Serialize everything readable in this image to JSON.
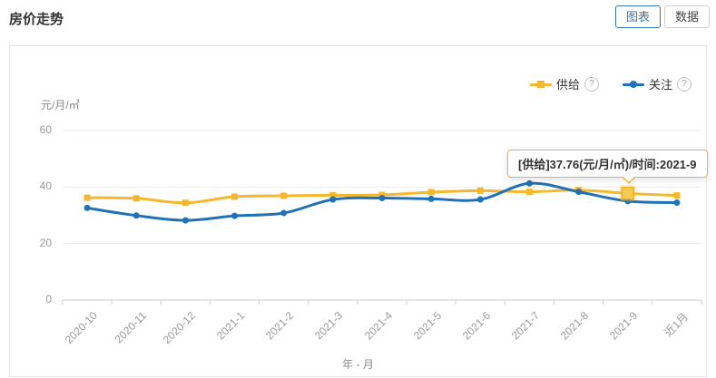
{
  "header": {
    "title": "房价走势",
    "view_toggle": {
      "chart_label": "图表",
      "data_label": "数据",
      "active": "图表"
    }
  },
  "icons": {
    "help_glyph": "?"
  },
  "colors": {
    "accent_blue": "#3876B0",
    "series_supply": "#F5B72B",
    "series_follow": "#2072B8",
    "grid": "#ececec",
    "axis": "#cccccc",
    "tick_text": "#999999"
  },
  "chart_data": {
    "type": "line",
    "title": "房价走势",
    "unit_label": "元/月/㎡",
    "x_axis_name": "年 - 月",
    "categories": [
      "2020-10",
      "2020-11",
      "2020-12",
      "2021-1",
      "2021-2",
      "2021-3",
      "2021-4",
      "2021-5",
      "2021-6",
      "2021-7",
      "2021-8",
      "2021-9",
      "近1月"
    ],
    "series": [
      {
        "name": "供给",
        "color": "#F5B72B",
        "symbol": "square",
        "values": [
          36.2,
          36.0,
          34.4,
          36.6,
          36.9,
          37.1,
          37.2,
          38.2,
          38.7,
          38.3,
          38.9,
          37.76,
          37.0
        ]
      },
      {
        "name": "关注",
        "color": "#2072B8",
        "symbol": "circle",
        "values": [
          32.6,
          29.9,
          28.2,
          29.8,
          30.8,
          35.6,
          36.1,
          35.8,
          35.6,
          41.3,
          38.3,
          35.0,
          34.5
        ]
      }
    ],
    "y_ticks": [
      0,
      20,
      40,
      60
    ],
    "ylim": [
      0,
      60
    ],
    "grid": true,
    "legend_position": "top-right",
    "smooth": true,
    "highlight": {
      "series_index": 0,
      "category_index": 11,
      "category": "2021-9",
      "value": 37.76
    },
    "tooltip": {
      "text": "[供给]37.76(元/月/㎡)/时间:2021-9",
      "border_color": "#F2B230"
    }
  }
}
